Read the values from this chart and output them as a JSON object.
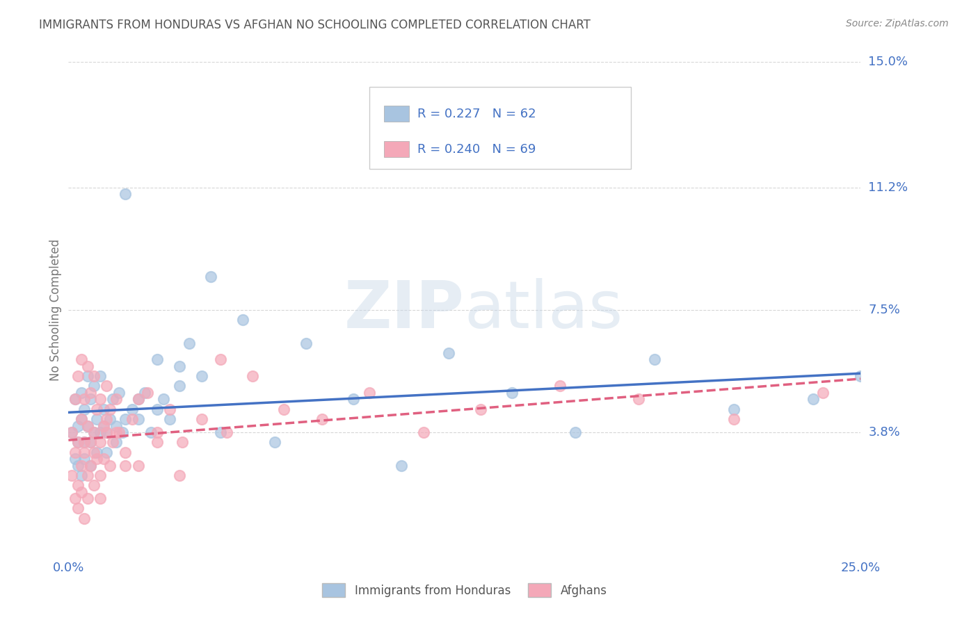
{
  "title": "IMMIGRANTS FROM HONDURAS VS AFGHAN NO SCHOOLING COMPLETED CORRELATION CHART",
  "source": "Source: ZipAtlas.com",
  "ylabel": "No Schooling Completed",
  "xlim": [
    0.0,
    0.25
  ],
  "ylim": [
    0.0,
    0.15
  ],
  "ytick_labels": [
    "3.8%",
    "7.5%",
    "11.2%",
    "15.0%"
  ],
  "yticks": [
    0.038,
    0.075,
    0.112,
    0.15
  ],
  "legend_labels": [
    "Immigrants from Honduras",
    "Afghans"
  ],
  "legend_R": [
    "R = 0.227",
    "R = 0.240"
  ],
  "legend_N": [
    "N = 62",
    "N = 69"
  ],
  "color_honduras": "#a8c4e0",
  "color_afghan": "#f4a8b8",
  "line_color_honduras": "#4472c4",
  "line_color_afghan": "#e06080",
  "background_color": "#ffffff",
  "grid_color": "#cccccc",
  "title_color": "#555555",
  "honduras_x": [
    0.001,
    0.002,
    0.002,
    0.003,
    0.003,
    0.003,
    0.004,
    0.004,
    0.004,
    0.005,
    0.005,
    0.005,
    0.006,
    0.006,
    0.007,
    0.007,
    0.007,
    0.008,
    0.008,
    0.009,
    0.009,
    0.01,
    0.01,
    0.011,
    0.011,
    0.012,
    0.013,
    0.014,
    0.015,
    0.016,
    0.017,
    0.018,
    0.02,
    0.022,
    0.024,
    0.026,
    0.028,
    0.03,
    0.032,
    0.035,
    0.038,
    0.042,
    0.048,
    0.055,
    0.065,
    0.075,
    0.09,
    0.105,
    0.12,
    0.14,
    0.16,
    0.185,
    0.21,
    0.235,
    0.25,
    0.012,
    0.015,
    0.018,
    0.022,
    0.028,
    0.035,
    0.045
  ],
  "honduras_y": [
    0.038,
    0.03,
    0.048,
    0.035,
    0.028,
    0.04,
    0.042,
    0.025,
    0.05,
    0.035,
    0.045,
    0.03,
    0.04,
    0.055,
    0.035,
    0.028,
    0.048,
    0.038,
    0.052,
    0.042,
    0.032,
    0.038,
    0.055,
    0.04,
    0.045,
    0.038,
    0.042,
    0.048,
    0.035,
    0.05,
    0.038,
    0.042,
    0.045,
    0.048,
    0.05,
    0.038,
    0.045,
    0.048,
    0.042,
    0.058,
    0.065,
    0.055,
    0.038,
    0.072,
    0.035,
    0.065,
    0.048,
    0.028,
    0.062,
    0.05,
    0.038,
    0.06,
    0.045,
    0.048,
    0.055,
    0.032,
    0.04,
    0.11,
    0.042,
    0.06,
    0.052,
    0.085
  ],
  "afghan_x": [
    0.001,
    0.001,
    0.002,
    0.002,
    0.002,
    0.003,
    0.003,
    0.003,
    0.003,
    0.004,
    0.004,
    0.004,
    0.004,
    0.005,
    0.005,
    0.005,
    0.005,
    0.006,
    0.006,
    0.006,
    0.006,
    0.007,
    0.007,
    0.007,
    0.008,
    0.008,
    0.008,
    0.009,
    0.009,
    0.01,
    0.01,
    0.01,
    0.011,
    0.011,
    0.012,
    0.012,
    0.013,
    0.013,
    0.014,
    0.015,
    0.016,
    0.018,
    0.02,
    0.022,
    0.025,
    0.028,
    0.032,
    0.036,
    0.042,
    0.05,
    0.058,
    0.068,
    0.08,
    0.095,
    0.112,
    0.13,
    0.155,
    0.18,
    0.21,
    0.238,
    0.048,
    0.035,
    0.028,
    0.022,
    0.018,
    0.015,
    0.012,
    0.01,
    0.008
  ],
  "afghan_y": [
    0.025,
    0.038,
    0.018,
    0.032,
    0.048,
    0.022,
    0.035,
    0.055,
    0.015,
    0.028,
    0.042,
    0.06,
    0.02,
    0.032,
    0.048,
    0.035,
    0.012,
    0.04,
    0.025,
    0.058,
    0.018,
    0.035,
    0.05,
    0.028,
    0.038,
    0.055,
    0.022,
    0.03,
    0.045,
    0.035,
    0.048,
    0.025,
    0.04,
    0.03,
    0.038,
    0.052,
    0.028,
    0.045,
    0.035,
    0.048,
    0.038,
    0.032,
    0.042,
    0.028,
    0.05,
    0.038,
    0.045,
    0.035,
    0.042,
    0.038,
    0.055,
    0.045,
    0.042,
    0.05,
    0.038,
    0.045,
    0.052,
    0.048,
    0.042,
    0.05,
    0.06,
    0.025,
    0.035,
    0.048,
    0.028,
    0.038,
    0.042,
    0.018,
    0.032
  ]
}
